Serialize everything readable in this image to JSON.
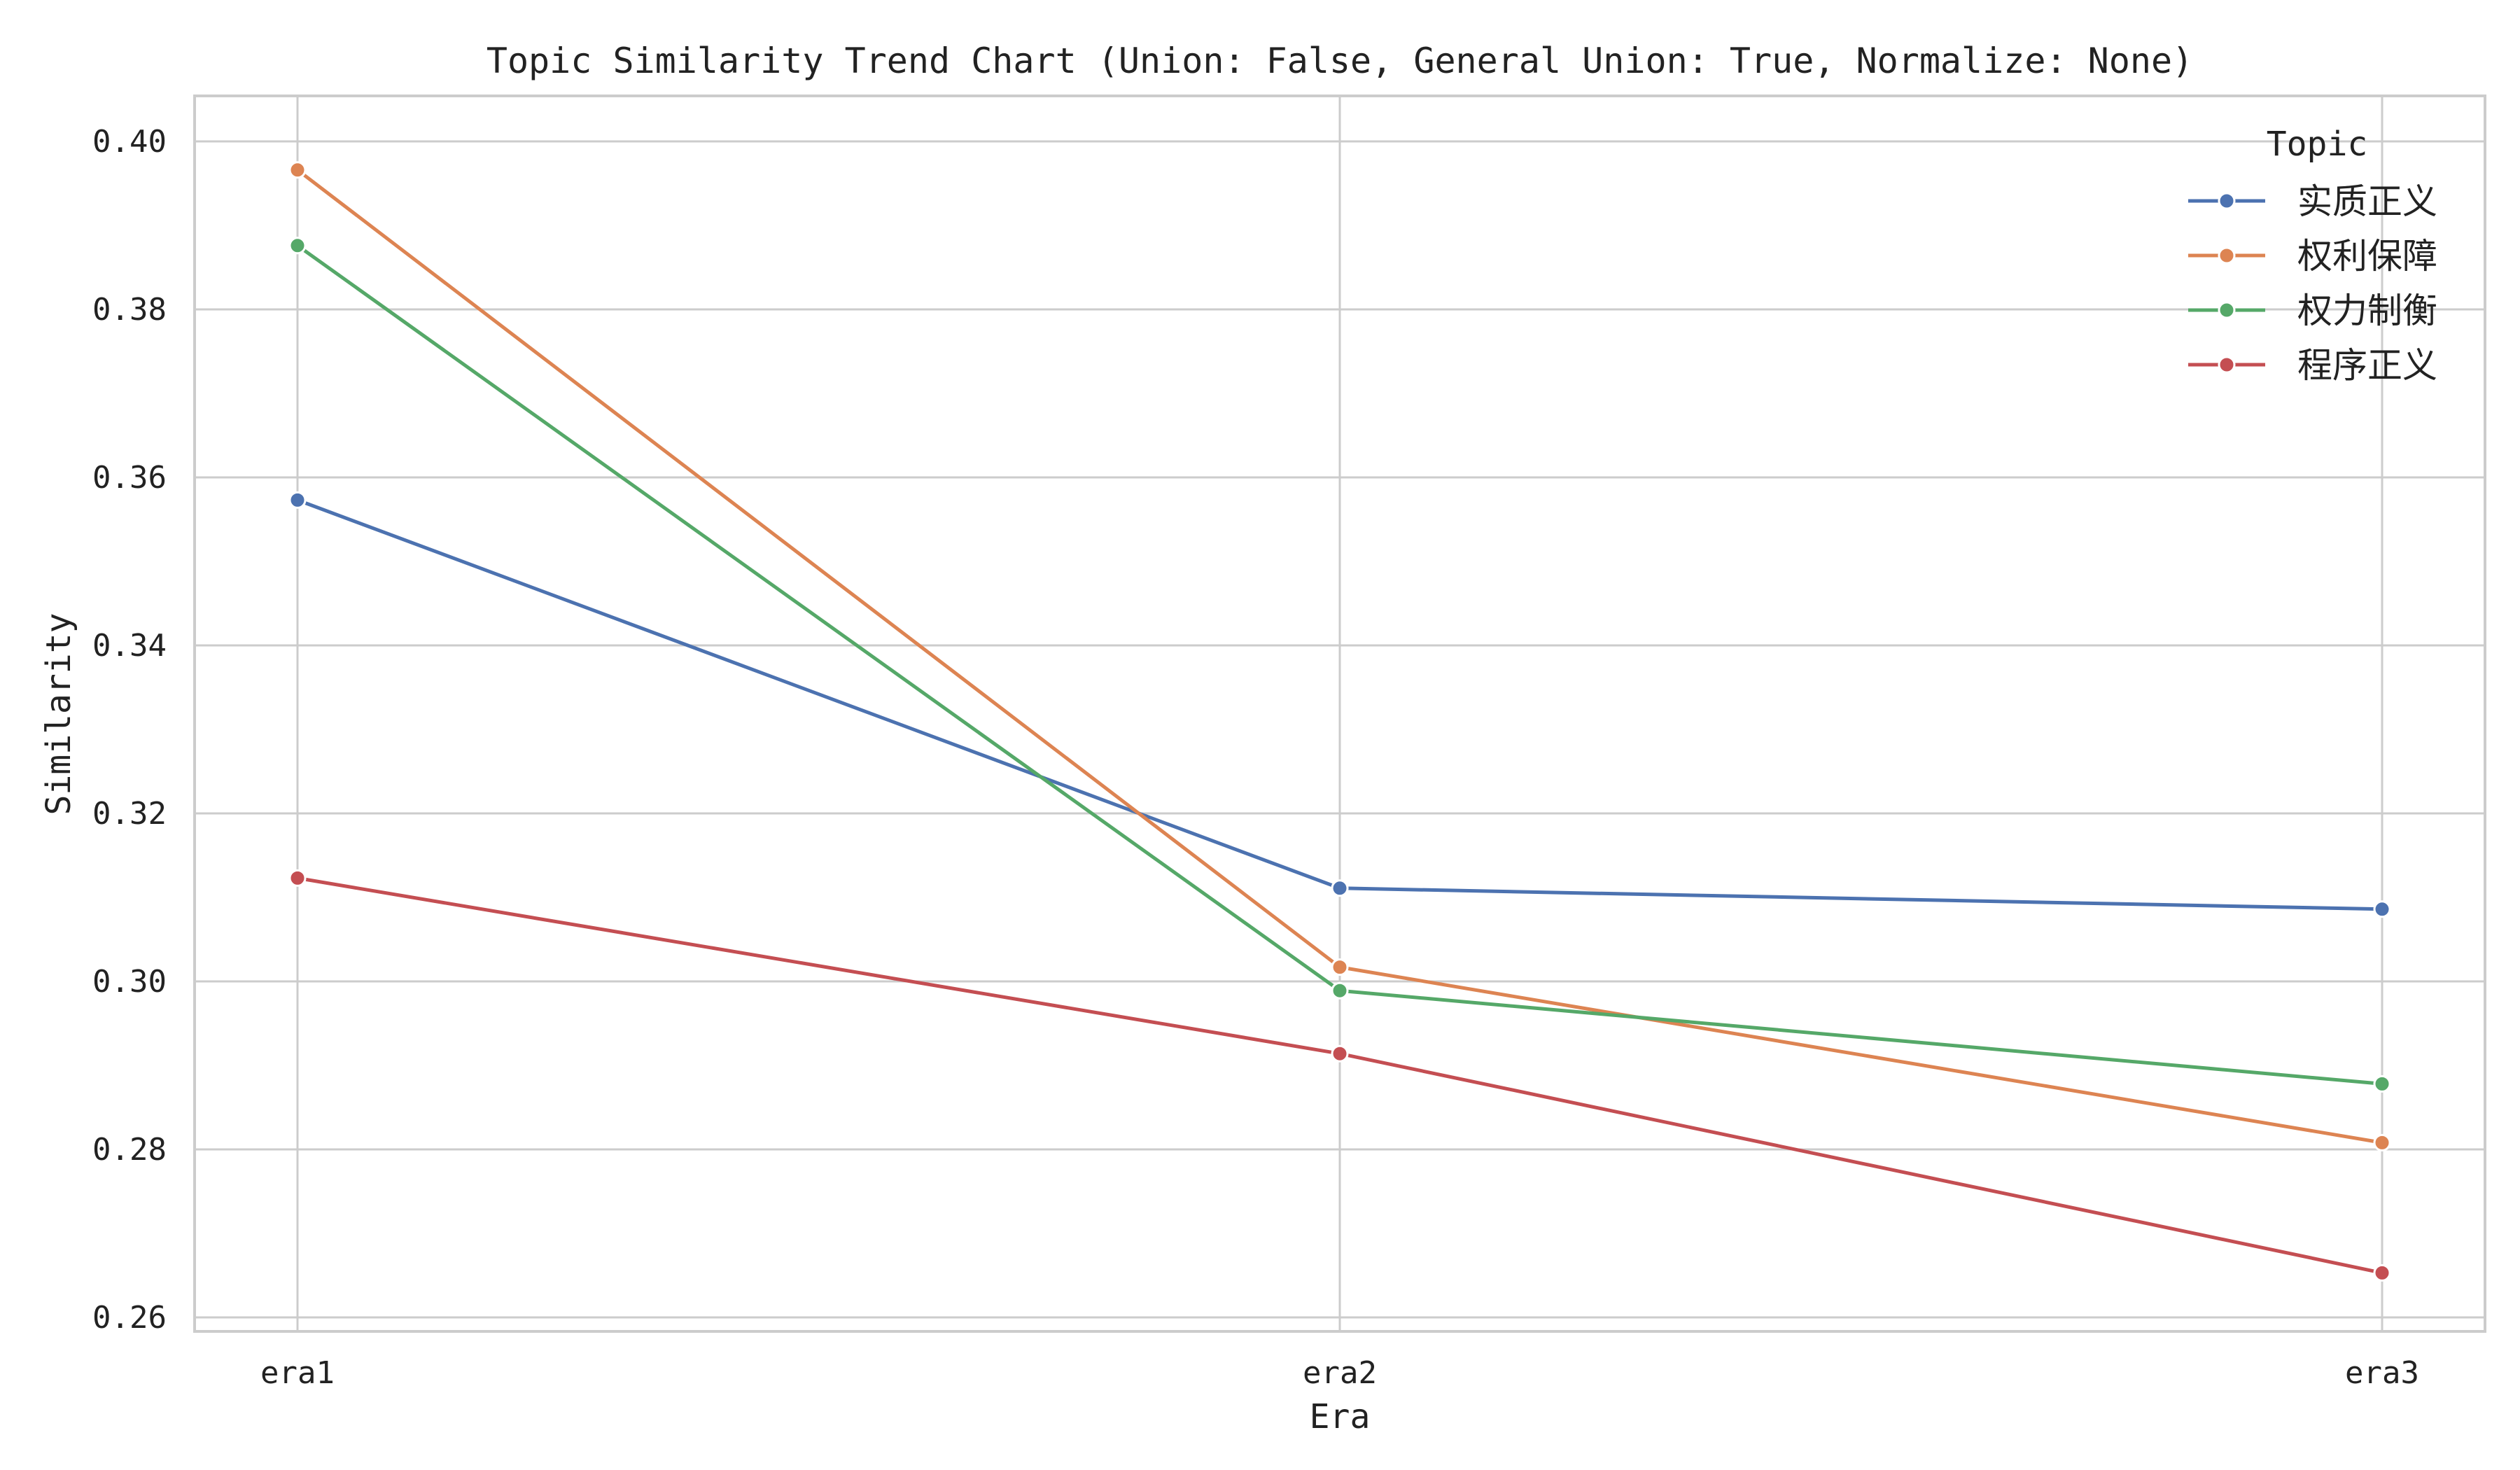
{
  "chart_data": {
    "type": "line",
    "title": "Topic Similarity Trend Chart (Union: False, General Union: True, Normalize: None)",
    "xlabel": "Era",
    "ylabel": "Similarity",
    "categories": [
      "era1",
      "era2",
      "era3"
    ],
    "ylim": [
      0.26,
      0.404
    ],
    "yticks": [
      0.26,
      0.28,
      0.3,
      0.32,
      0.34,
      0.36,
      0.38,
      0.4
    ],
    "ytick_labels": [
      "0.26",
      "0.28",
      "0.30",
      "0.32",
      "0.34",
      "0.36",
      "0.38",
      "0.40"
    ],
    "grid": true,
    "legend": {
      "title": "Topic",
      "position": "top-right"
    },
    "series": [
      {
        "name": "实质正义",
        "color": "#4c72b0",
        "values": [
          0.3573,
          0.3111,
          0.3086
        ]
      },
      {
        "name": "权利保障",
        "color": "#dd8452",
        "values": [
          0.3966,
          0.3017,
          0.2808
        ]
      },
      {
        "name": "权力制衡",
        "color": "#55a868",
        "values": [
          0.3876,
          0.2989,
          0.2878
        ]
      },
      {
        "name": "程序正义",
        "color": "#c44e52",
        "values": [
          0.3123,
          0.2914,
          0.2653
        ]
      }
    ]
  }
}
